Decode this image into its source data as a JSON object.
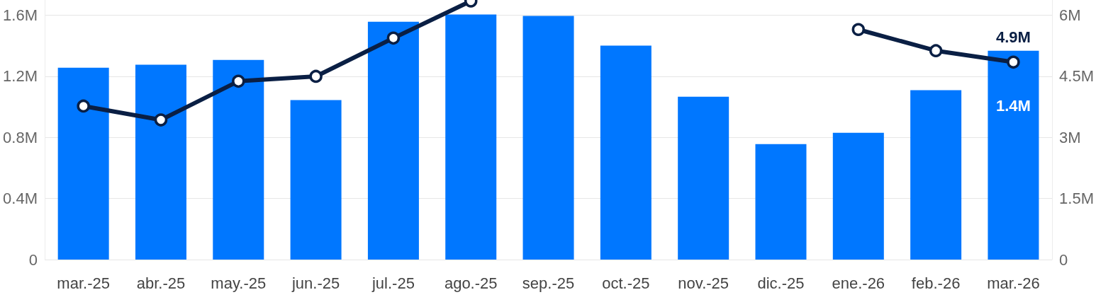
{
  "chart_data": {
    "type": "bar",
    "categories": [
      "mar.-25",
      "abr.-25",
      "may.-25",
      "jun.-25",
      "jul.-25",
      "ago.-25",
      "sep.-25",
      "oct.-25",
      "nov.-25",
      "dic.-25",
      "ene.-26",
      "feb.-26",
      "mar.-26"
    ],
    "series": [
      {
        "color": "#0077ff",
        "values": [
          1257000,
          1276000,
          1308000,
          1044000,
          1558000,
          1605000,
          1596000,
          1401000,
          1067000,
          756000,
          830000,
          1109000,
          1368000
        ],
        "value_labels": [
          null,
          null,
          null,
          null,
          null,
          null,
          null,
          null,
          null,
          null,
          null,
          null,
          "1.4M"
        ]
      },
      {
        "type": "line",
        "axis": "y2",
        "color": "#0a1f44",
        "marker": "circle",
        "values": [
          3770000,
          3430000,
          4380000,
          4500000,
          5440000,
          6350000,
          null,
          null,
          null,
          null,
          5650000,
          5130000,
          4850000
        ],
        "value_labels": [
          null,
          null,
          null,
          null,
          null,
          null,
          null,
          null,
          null,
          null,
          null,
          null,
          "4.9M"
        ]
      }
    ],
    "ylim": [
      0,
      1700000
    ],
    "yticks": [
      0,
      {
        "value": 400000,
        "label": "0.4M"
      },
      {
        "value": 800000,
        "label": "0.8M"
      },
      {
        "value": 1200000,
        "label": "1.2M"
      },
      {
        "value": 1600000,
        "label": "1.6M"
      }
    ],
    "y2lim": [
      0,
      6375000
    ],
    "y2ticks": [
      0,
      {
        "value": 1500000,
        "label": "1.5M"
      },
      {
        "value": 3000000,
        "label": "3M"
      },
      {
        "value": 4500000,
        "label": "4.5M"
      },
      {
        "value": 6000000,
        "label": "6M"
      }
    ],
    "grid": "y"
  }
}
